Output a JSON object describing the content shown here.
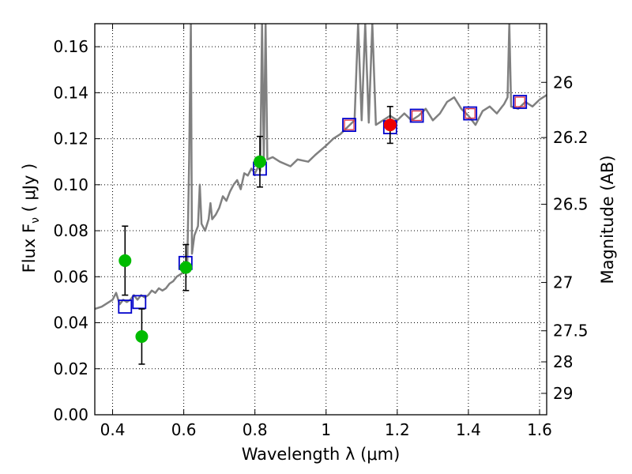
{
  "chart_data": {
    "type": "scatter",
    "xlabel": "Wavelength  λ (μm)",
    "ylabel": "Flux  F",
    "ylabel_subscript": "ν",
    "ylabel_unit": "  ( μJy )",
    "y2label": "Magnitude (AB)",
    "xlim": [
      0.35,
      1.62
    ],
    "ylim": [
      0.0,
      0.17
    ],
    "grid": true,
    "x_ticks": [
      0.4,
      0.6,
      0.8,
      1.0,
      1.2,
      1.4,
      1.6
    ],
    "x_tick_labels": [
      "0.4",
      "0.6",
      "0.8",
      "1",
      "1.2",
      "1.4",
      "1.6"
    ],
    "y_ticks": [
      0.0,
      0.02,
      0.04,
      0.06,
      0.08,
      0.1,
      0.12,
      0.14,
      0.16
    ],
    "y_tick_labels": [
      "0.00",
      "0.02",
      "0.04",
      "0.06",
      "0.08",
      "0.10",
      "0.12",
      "0.14",
      "0.16"
    ],
    "y2_ticks": [
      {
        "label": "26",
        "flux": 0.1445
      },
      {
        "label": "26.2",
        "flux": 0.1205
      },
      {
        "label": "26.5",
        "flux": 0.0915
      },
      {
        "label": "27",
        "flux": 0.0575
      },
      {
        "label": "27.5",
        "flux": 0.0365
      },
      {
        "label": "28",
        "flux": 0.023
      },
      {
        "label": "29",
        "flux": 0.0093
      }
    ],
    "series": [
      {
        "kind": "line",
        "color": "#808080",
        "points": [
          [
            0.35,
            0.046
          ],
          [
            0.37,
            0.047
          ],
          [
            0.39,
            0.049
          ],
          [
            0.4,
            0.05
          ],
          [
            0.41,
            0.053
          ],
          [
            0.42,
            0.048
          ],
          [
            0.43,
            0.05
          ],
          [
            0.44,
            0.049
          ],
          [
            0.45,
            0.05
          ],
          [
            0.46,
            0.052
          ],
          [
            0.47,
            0.05
          ],
          [
            0.48,
            0.052
          ],
          [
            0.49,
            0.051
          ],
          [
            0.5,
            0.052
          ],
          [
            0.51,
            0.054
          ],
          [
            0.52,
            0.053
          ],
          [
            0.53,
            0.055
          ],
          [
            0.54,
            0.054
          ],
          [
            0.55,
            0.055
          ],
          [
            0.56,
            0.057
          ],
          [
            0.57,
            0.058
          ],
          [
            0.58,
            0.06
          ],
          [
            0.59,
            0.061
          ],
          [
            0.6,
            0.062
          ],
          [
            0.605,
            0.065
          ],
          [
            0.61,
            0.066
          ],
          [
            0.615,
            0.11
          ],
          [
            0.62,
            0.17
          ],
          [
            0.623,
            0.07
          ],
          [
            0.63,
            0.078
          ],
          [
            0.64,
            0.082
          ],
          [
            0.645,
            0.1
          ],
          [
            0.65,
            0.083
          ],
          [
            0.66,
            0.08
          ],
          [
            0.67,
            0.085
          ],
          [
            0.675,
            0.092
          ],
          [
            0.68,
            0.085
          ],
          [
            0.69,
            0.087
          ],
          [
            0.7,
            0.09
          ],
          [
            0.71,
            0.095
          ],
          [
            0.72,
            0.093
          ],
          [
            0.73,
            0.097
          ],
          [
            0.74,
            0.1
          ],
          [
            0.75,
            0.102
          ],
          [
            0.76,
            0.098
          ],
          [
            0.77,
            0.105
          ],
          [
            0.78,
            0.104
          ],
          [
            0.79,
            0.107
          ],
          [
            0.8,
            0.105
          ],
          [
            0.81,
            0.108
          ],
          [
            0.815,
            0.106
          ],
          [
            0.82,
            0.17
          ],
          [
            0.825,
            0.11
          ],
          [
            0.83,
            0.17
          ],
          [
            0.835,
            0.111
          ],
          [
            0.85,
            0.112
          ],
          [
            0.87,
            0.11
          ],
          [
            0.9,
            0.108
          ],
          [
            0.92,
            0.111
          ],
          [
            0.95,
            0.11
          ],
          [
            0.97,
            0.113
          ],
          [
            1.0,
            0.117
          ],
          [
            1.02,
            0.12
          ],
          [
            1.04,
            0.122
          ],
          [
            1.06,
            0.125
          ],
          [
            1.08,
            0.128
          ],
          [
            1.09,
            0.17
          ],
          [
            1.1,
            0.128
          ],
          [
            1.11,
            0.17
          ],
          [
            1.12,
            0.127
          ],
          [
            1.13,
            0.17
          ],
          [
            1.14,
            0.126
          ],
          [
            1.16,
            0.128
          ],
          [
            1.18,
            0.13
          ],
          [
            1.2,
            0.128
          ],
          [
            1.22,
            0.131
          ],
          [
            1.24,
            0.128
          ],
          [
            1.26,
            0.13
          ],
          [
            1.28,
            0.133
          ],
          [
            1.3,
            0.128
          ],
          [
            1.32,
            0.131
          ],
          [
            1.34,
            0.136
          ],
          [
            1.36,
            0.138
          ],
          [
            1.38,
            0.133
          ],
          [
            1.4,
            0.13
          ],
          [
            1.42,
            0.126
          ],
          [
            1.44,
            0.132
          ],
          [
            1.46,
            0.134
          ],
          [
            1.48,
            0.131
          ],
          [
            1.5,
            0.135
          ],
          [
            1.51,
            0.138
          ],
          [
            1.515,
            0.17
          ],
          [
            1.52,
            0.134
          ],
          [
            1.54,
            0.133
          ],
          [
            1.56,
            0.136
          ],
          [
            1.58,
            0.134
          ],
          [
            1.6,
            0.137
          ],
          [
            1.62,
            0.139
          ]
        ]
      },
      {
        "kind": "model-bands",
        "marker": "open-square",
        "color": "#0000cc",
        "points": [
          [
            0.435,
            0.047
          ],
          [
            0.475,
            0.049
          ],
          [
            0.605,
            0.066
          ],
          [
            0.814,
            0.107
          ],
          [
            1.065,
            0.126
          ],
          [
            1.18,
            0.125
          ],
          [
            1.255,
            0.13
          ],
          [
            1.405,
            0.131
          ],
          [
            1.545,
            0.136
          ]
        ]
      },
      {
        "kind": "model-bands-nir",
        "marker": "small-open-square",
        "color": "#dd3344",
        "points": [
          [
            1.065,
            0.126
          ],
          [
            1.255,
            0.13
          ],
          [
            1.405,
            0.131
          ],
          [
            1.545,
            0.136
          ]
        ]
      },
      {
        "kind": "observed-optical",
        "marker": "filled-circle",
        "color": "#00bb00",
        "points": [
          {
            "x": 0.435,
            "y": 0.067,
            "ylo": 0.052,
            "yhi": 0.082
          },
          {
            "x": 0.482,
            "y": 0.034,
            "ylo": 0.022,
            "yhi": 0.046
          },
          {
            "x": 0.606,
            "y": 0.064,
            "ylo": 0.054,
            "yhi": 0.074
          },
          {
            "x": 0.814,
            "y": 0.11,
            "ylo": 0.099,
            "yhi": 0.121
          }
        ]
      },
      {
        "kind": "observed-nir",
        "marker": "filled-circle",
        "color": "#ee0000",
        "points": [
          {
            "x": 1.18,
            "y": 0.126,
            "ylo": 0.118,
            "yhi": 0.134
          }
        ]
      }
    ]
  }
}
